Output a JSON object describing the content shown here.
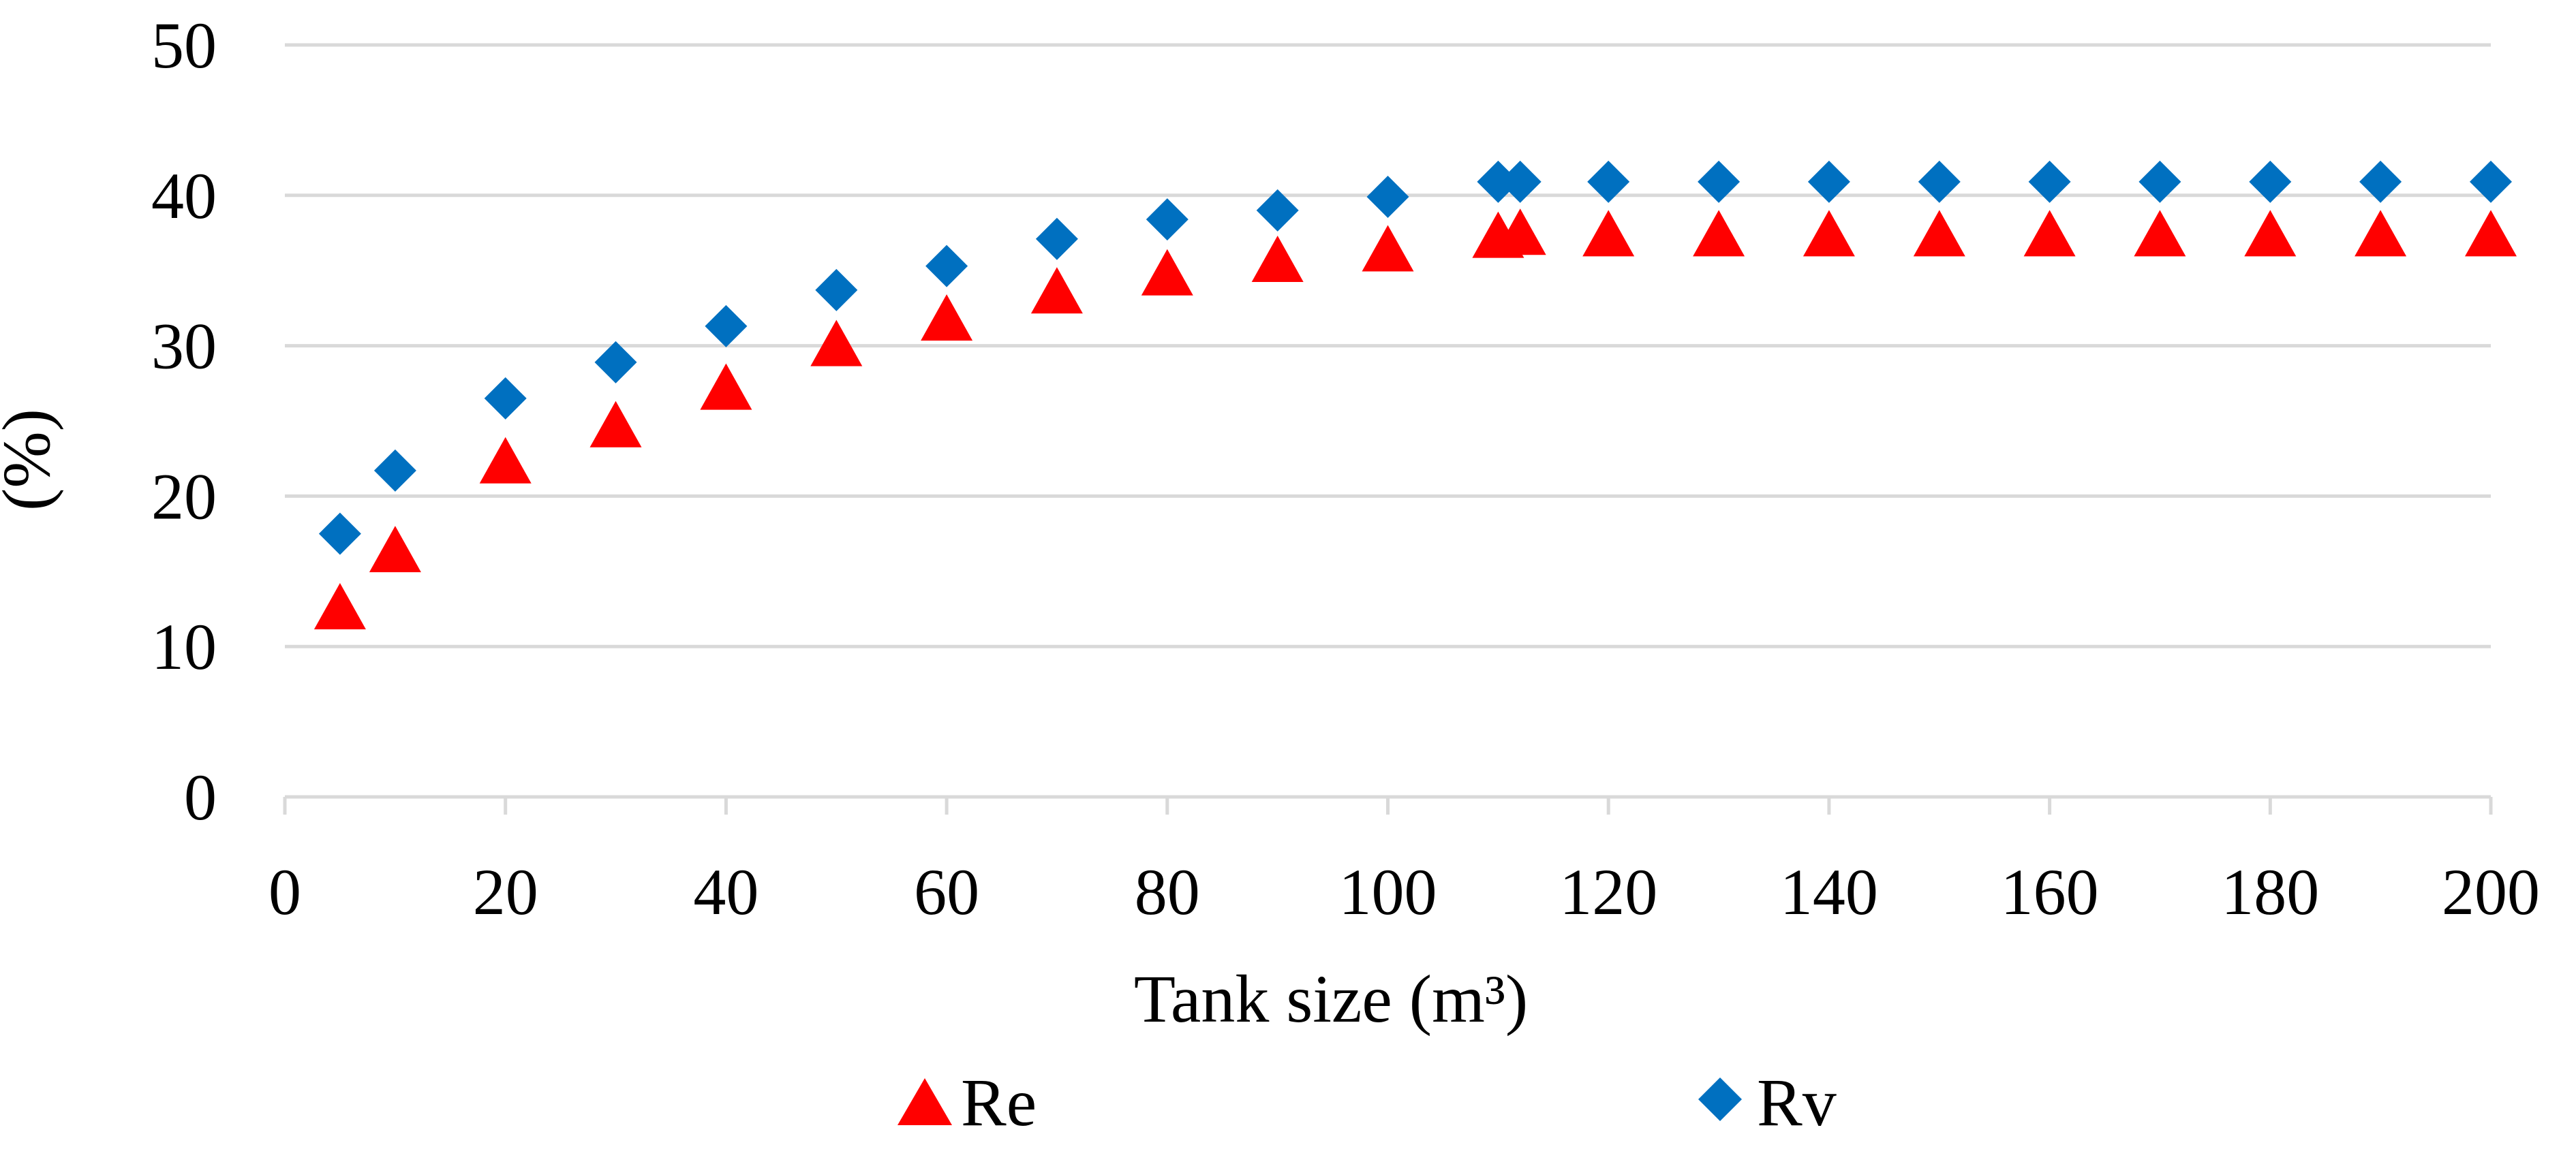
{
  "chart_data": {
    "type": "scatter",
    "title": "",
    "xlabel": "Tank size (m³)",
    "ylabel": "(%)",
    "xlim": [
      0,
      200
    ],
    "ylim": [
      0,
      50
    ],
    "xticks": [
      "0",
      "20",
      "40",
      "60",
      "80",
      "100",
      "120",
      "140",
      "160",
      "180",
      "200"
    ],
    "yticks": [
      "0",
      "10",
      "20",
      "30",
      "40",
      "50"
    ],
    "grid": true,
    "legend_position": "bottom",
    "series": [
      {
        "name": "Re",
        "marker": "triangle",
        "color": "#ff0000",
        "x": [
          5,
          10,
          20,
          30,
          40,
          50,
          60,
          70,
          80,
          90,
          100,
          110,
          112,
          120,
          130,
          140,
          150,
          160,
          170,
          180,
          190,
          200
        ],
        "y": [
          12.5,
          16.3,
          22.2,
          24.6,
          27.1,
          30.0,
          31.7,
          33.5,
          34.7,
          35.6,
          36.3,
          37.2,
          37.4,
          37.3,
          37.3,
          37.3,
          37.3,
          37.3,
          37.3,
          37.3,
          37.3,
          37.3
        ]
      },
      {
        "name": "Rv",
        "marker": "diamond",
        "color": "#0070c0",
        "x": [
          5,
          10,
          20,
          30,
          40,
          50,
          60,
          70,
          80,
          90,
          100,
          110,
          112,
          120,
          130,
          140,
          150,
          160,
          170,
          180,
          190,
          200
        ],
        "y": [
          17.5,
          21.7,
          26.5,
          28.9,
          31.3,
          33.7,
          35.3,
          37.1,
          38.4,
          39.0,
          39.9,
          40.9,
          40.9,
          40.9,
          40.9,
          40.9,
          40.9,
          40.9,
          40.9,
          40.9,
          40.9,
          40.9
        ]
      }
    ]
  }
}
